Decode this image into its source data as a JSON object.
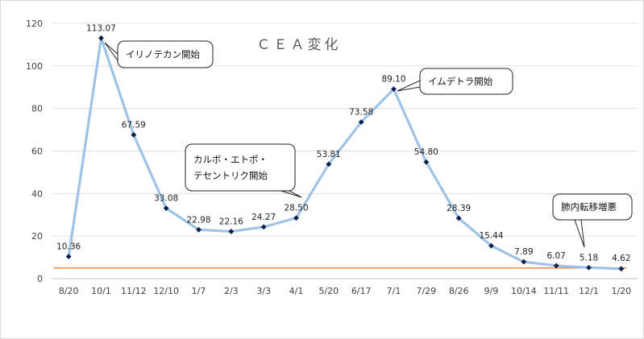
{
  "chart_data": {
    "type": "line",
    "title": "ＣＥＡ変化",
    "xlabel": "",
    "ylabel": "",
    "ylim": [
      0,
      120
    ],
    "yticks": [
      0,
      20,
      40,
      60,
      80,
      100,
      120
    ],
    "grid": true,
    "legend": "none",
    "categories": [
      "8/20",
      "10/1",
      "11/12",
      "12/10",
      "1/7",
      "2/3",
      "3/3",
      "4/1",
      "5/20",
      "6/17",
      "7/1",
      "7/29",
      "8/26",
      "9/9",
      "10/14",
      "11/11",
      "12/1",
      "1/20"
    ],
    "series": [
      {
        "values": [
          10.36,
          113.07,
          67.59,
          33.08,
          22.98,
          22.16,
          24.27,
          28.5,
          53.81,
          73.58,
          89.1,
          54.8,
          28.39,
          15.44,
          7.89,
          6.07,
          5.18,
          4.62
        ],
        "labels": [
          "10.36",
          "113.07",
          "67.59",
          "33.08",
          "22.98",
          "22.16",
          "24.27",
          "28.50",
          "53.81",
          "73.58",
          "89.10",
          "54.80",
          "28.39",
          "15.44",
          "7.89",
          "6.07",
          "5.18",
          "4.62"
        ],
        "color": "#9dc3e6",
        "marker_color": "#0b1f4d"
      },
      {
        "values": [
          5,
          5,
          5,
          5,
          5,
          5,
          5,
          5,
          5,
          5,
          5,
          5,
          5,
          5,
          5,
          5,
          5,
          5
        ],
        "color": "#ed7d31"
      }
    ],
    "annotations": [
      {
        "lines": [
          "イリノテカン開始"
        ],
        "point_index": 1
      },
      {
        "lines": [
          "カルボ・エトポ・",
          "テセントリク開始"
        ],
        "point_index": 7
      },
      {
        "lines": [
          "イムデトラ開始"
        ],
        "point_index": 10
      },
      {
        "lines": [
          "肺内転移増悪"
        ],
        "point_index": 16
      }
    ]
  }
}
